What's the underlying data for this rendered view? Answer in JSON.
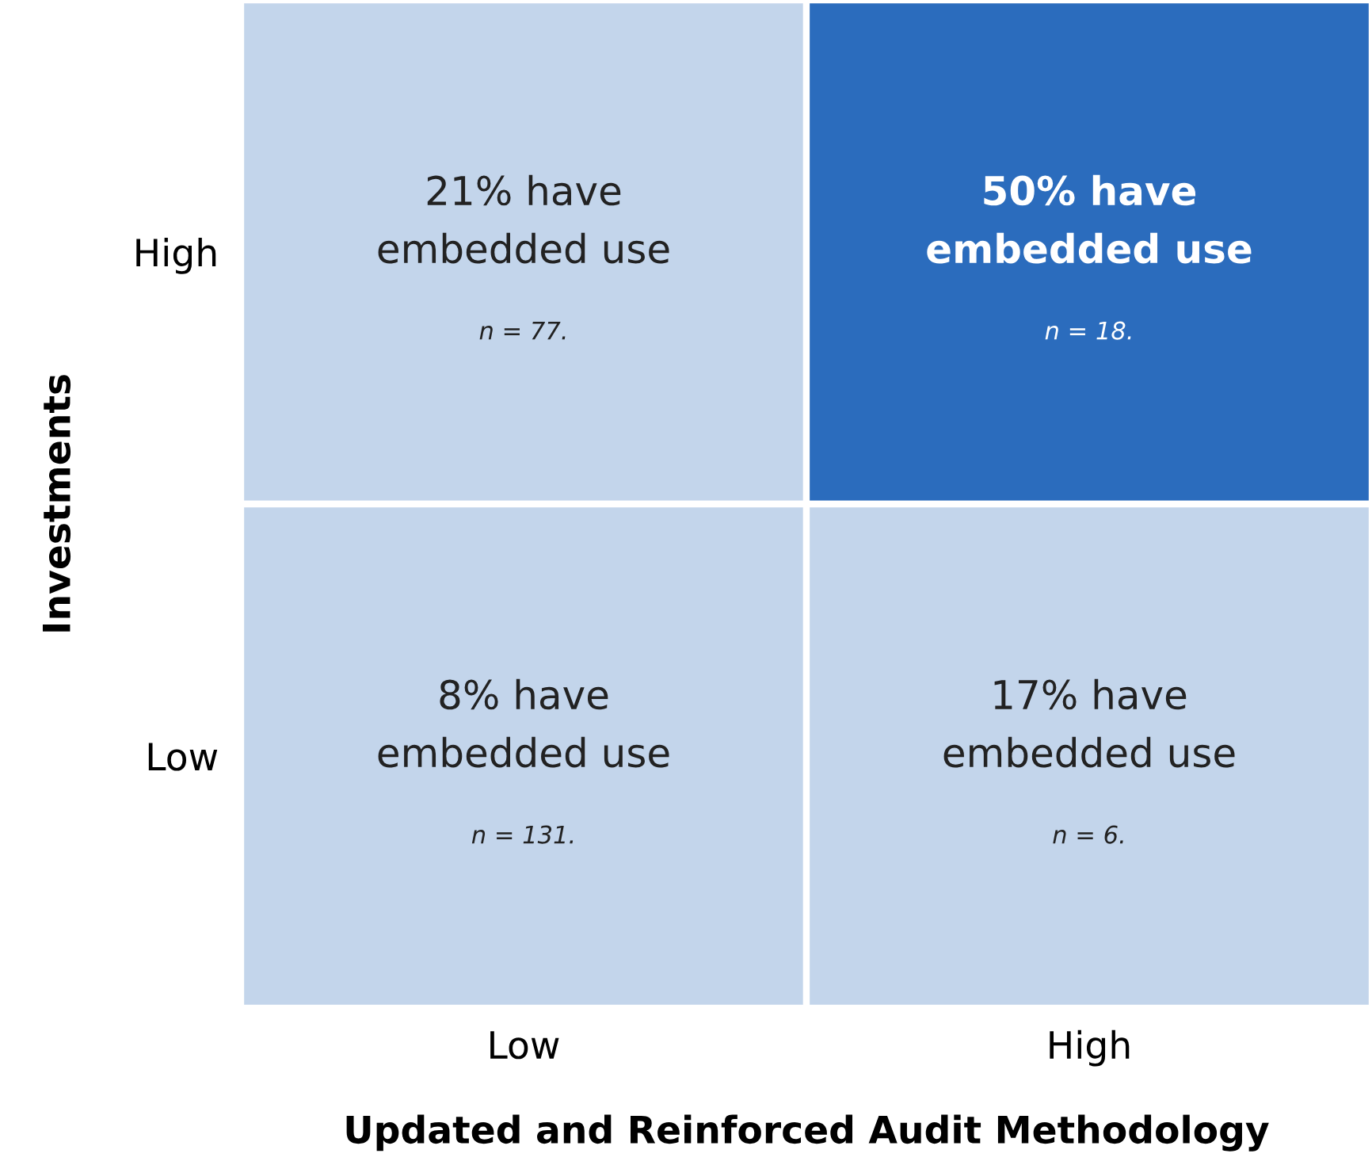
{
  "chart_data": {
    "type": "heatmap",
    "xlabel": "Updated and Reinforced Audit Methodology",
    "ylabel": "Investments",
    "categories": [
      "Low",
      "High"
    ],
    "y_categories": [
      "High",
      "Low"
    ],
    "cells": [
      [
        21,
        50
      ],
      [
        8,
        17
      ]
    ],
    "cell_labels": [
      [
        "21% have",
        "50% have"
      ],
      [
        "8% have",
        "17% have"
      ]
    ],
    "colors": [
      [
        "#c3d5eb",
        "#2b6cbd"
      ],
      [
        "#c3d5eb",
        "#c3d5eb"
      ]
    ],
    "annotations": [
      "embedded use",
      "n = 77.",
      "embedded use",
      "n = 18.",
      "embedded use",
      "n = 131.",
      "embedded use",
      "n = 6."
    ]
  }
}
